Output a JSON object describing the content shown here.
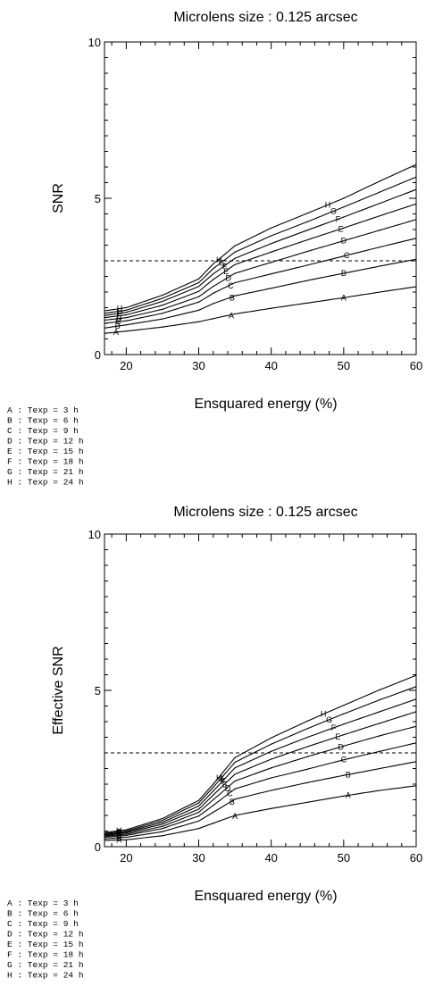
{
  "chart_data": [
    {
      "type": "line",
      "title": "Microlens size : 0.125 arcsec",
      "xlabel": "Ensquared energy (%)",
      "ylabel": "SNR",
      "xlim": [
        17,
        60
      ],
      "ylim": [
        0,
        10
      ],
      "xticks": [
        20,
        30,
        40,
        50,
        60
      ],
      "yticks": [
        0,
        5,
        10
      ],
      "threshold": 3,
      "legend": [
        "A : Texp = 3 h",
        "B : Texp = 6 h",
        "C : Texp = 9 h",
        "D : Texp = 12 h",
        "E : Texp = 15 h",
        "F : Texp = 18 h",
        "G : Texp = 21 h",
        "H : Texp = 24 h"
      ],
      "series": [
        {
          "name": "A",
          "x": [
            17,
            20,
            25,
            30,
            32,
            35,
            40,
            45,
            50,
            55,
            60
          ],
          "y": [
            0.68,
            0.75,
            0.88,
            1.05,
            1.15,
            1.3,
            1.48,
            1.65,
            1.82,
            2.0,
            2.17
          ]
        },
        {
          "name": "B",
          "x": [
            17,
            20,
            25,
            30,
            32,
            35,
            40,
            45,
            50,
            55,
            60
          ],
          "y": [
            0.85,
            0.95,
            1.14,
            1.42,
            1.63,
            1.88,
            2.12,
            2.37,
            2.6,
            2.83,
            3.05
          ]
        },
        {
          "name": "C",
          "x": [
            17,
            20,
            25,
            30,
            32,
            35,
            40,
            45,
            50,
            55,
            60
          ],
          "y": [
            1.0,
            1.08,
            1.32,
            1.68,
            1.96,
            2.3,
            2.58,
            2.86,
            3.15,
            3.44,
            3.72
          ]
        },
        {
          "name": "D",
          "x": [
            17,
            20,
            25,
            30,
            32,
            35,
            40,
            45,
            50,
            55,
            60
          ],
          "y": [
            1.1,
            1.18,
            1.45,
            1.85,
            2.18,
            2.6,
            2.95,
            3.3,
            3.64,
            3.98,
            4.32
          ]
        },
        {
          "name": "E",
          "x": [
            17,
            20,
            25,
            30,
            32,
            35,
            40,
            45,
            50,
            55,
            60
          ],
          "y": [
            1.18,
            1.27,
            1.58,
            2.02,
            2.4,
            2.88,
            3.28,
            3.67,
            4.05,
            4.44,
            4.82
          ]
        },
        {
          "name": "F",
          "x": [
            17,
            20,
            25,
            30,
            32,
            35,
            40,
            45,
            50,
            55,
            60
          ],
          "y": [
            1.25,
            1.35,
            1.7,
            2.18,
            2.58,
            3.08,
            3.55,
            3.98,
            4.4,
            4.84,
            5.28
          ]
        },
        {
          "name": "G",
          "x": [
            17,
            20,
            25,
            30,
            32,
            35,
            40,
            45,
            50,
            55,
            60
          ],
          "y": [
            1.32,
            1.42,
            1.8,
            2.3,
            2.75,
            3.28,
            3.8,
            4.25,
            4.72,
            5.2,
            5.68
          ]
        },
        {
          "name": "H",
          "x": [
            17,
            20,
            25,
            30,
            32,
            35,
            40,
            45,
            50,
            55,
            60
          ],
          "y": [
            1.4,
            1.5,
            1.9,
            2.42,
            2.9,
            3.48,
            4.05,
            4.52,
            5.0,
            5.55,
            6.08
          ]
        }
      ],
      "labels": [
        {
          "name": "A",
          "x": [
            18.6,
            34.5
          ]
        },
        {
          "name": "B",
          "x": [
            18.8,
            34.6
          ]
        },
        {
          "name": "C",
          "x": [
            18.9,
            34.4
          ]
        },
        {
          "name": "D",
          "x": [
            19.0,
            34.1
          ]
        },
        {
          "name": "E",
          "x": [
            19.0,
            33.8
          ]
        },
        {
          "name": "F",
          "x": [
            19.1,
            33.6
          ]
        },
        {
          "name": "G",
          "x": [
            19.1,
            33.2
          ]
        },
        {
          "name": "H",
          "x": [
            19.1,
            32.8
          ]
        }
      ],
      "labels_right": [
        {
          "name": "A",
          "x": 50.0
        },
        {
          "name": "B",
          "x": 50.0
        },
        {
          "name": "C",
          "x": 50.4
        },
        {
          "name": "D",
          "x": 50.0
        },
        {
          "name": "E",
          "x": 49.6
        },
        {
          "name": "F",
          "x": 49.2
        },
        {
          "name": "G",
          "x": 48.6
        },
        {
          "name": "H",
          "x": 47.8
        }
      ]
    },
    {
      "type": "line",
      "title": "Microlens size : 0.125 arcsec",
      "xlabel": "Ensquared energy (%)",
      "ylabel": "Effective SNR",
      "xlim": [
        17,
        60
      ],
      "ylim": [
        0,
        10
      ],
      "xticks": [
        20,
        30,
        40,
        50,
        60
      ],
      "yticks": [
        0,
        5,
        10
      ],
      "threshold": 3,
      "legend": [
        "A : Texp = 3 h",
        "B : Texp = 6 h",
        "C : Texp = 9 h",
        "D : Texp = 12 h",
        "E : Texp = 15 h",
        "F : Texp = 18 h",
        "G : Texp = 21 h",
        "H : Texp = 24 h"
      ],
      "series": [
        {
          "name": "A",
          "x": [
            17,
            20,
            25,
            30,
            32,
            35,
            40,
            45,
            50,
            55,
            60
          ],
          "y": [
            0.2,
            0.22,
            0.35,
            0.58,
            0.75,
            1.0,
            1.22,
            1.42,
            1.62,
            1.8,
            1.95
          ]
        },
        {
          "name": "B",
          "x": [
            17,
            20,
            25,
            30,
            32,
            35,
            40,
            45,
            50,
            55,
            60
          ],
          "y": [
            0.25,
            0.3,
            0.48,
            0.82,
            1.1,
            1.52,
            1.8,
            2.05,
            2.28,
            2.5,
            2.72
          ]
        },
        {
          "name": "C",
          "x": [
            17,
            20,
            25,
            30,
            32,
            35,
            40,
            45,
            50,
            55,
            60
          ],
          "y": [
            0.3,
            0.36,
            0.58,
            0.98,
            1.32,
            1.85,
            2.2,
            2.48,
            2.78,
            3.05,
            3.32
          ]
        },
        {
          "name": "D",
          "x": [
            17,
            20,
            25,
            30,
            32,
            35,
            40,
            45,
            50,
            55,
            60
          ],
          "y": [
            0.33,
            0.4,
            0.65,
            1.1,
            1.5,
            2.1,
            2.52,
            2.88,
            3.22,
            3.55,
            3.85
          ]
        },
        {
          "name": "E",
          "x": [
            17,
            20,
            25,
            30,
            32,
            35,
            40,
            45,
            50,
            55,
            60
          ],
          "y": [
            0.36,
            0.44,
            0.72,
            1.2,
            1.65,
            2.32,
            2.8,
            3.2,
            3.58,
            3.95,
            4.32
          ]
        },
        {
          "name": "F",
          "x": [
            17,
            20,
            25,
            30,
            32,
            35,
            40,
            45,
            50,
            55,
            60
          ],
          "y": [
            0.39,
            0.47,
            0.78,
            1.3,
            1.78,
            2.52,
            3.05,
            3.5,
            3.92,
            4.32,
            4.72
          ]
        },
        {
          "name": "G",
          "x": [
            17,
            20,
            25,
            30,
            32,
            35,
            40,
            45,
            50,
            55,
            60
          ],
          "y": [
            0.42,
            0.5,
            0.84,
            1.4,
            1.9,
            2.7,
            3.28,
            3.78,
            4.25,
            4.7,
            5.12
          ]
        },
        {
          "name": "H",
          "x": [
            17,
            20,
            25,
            30,
            32,
            35,
            40,
            45,
            50,
            55,
            60
          ],
          "y": [
            0.45,
            0.54,
            0.9,
            1.48,
            2.0,
            2.85,
            3.48,
            4.02,
            4.52,
            5.02,
            5.48
          ]
        }
      ],
      "labels": [
        {
          "name": "A",
          "x": [
            19.0,
            35.0
          ]
        },
        {
          "name": "B",
          "x": [
            19.0,
            34.6
          ]
        },
        {
          "name": "C",
          "x": [
            19.0,
            34.3
          ]
        },
        {
          "name": "D",
          "x": [
            19.0,
            34.0
          ]
        },
        {
          "name": "E",
          "x": [
            19.0,
            33.6
          ]
        },
        {
          "name": "F",
          "x": [
            19.0,
            33.4
          ]
        },
        {
          "name": "G",
          "x": [
            19.0,
            33.1
          ]
        },
        {
          "name": "H",
          "x": [
            19.0,
            32.8
          ]
        }
      ],
      "labels_right": [
        {
          "name": "A",
          "x": 50.6
        },
        {
          "name": "B",
          "x": 50.6
        },
        {
          "name": "C",
          "x": 50.0
        },
        {
          "name": "D",
          "x": 49.6
        },
        {
          "name": "E",
          "x": 49.2
        },
        {
          "name": "F",
          "x": 48.6
        },
        {
          "name": "G",
          "x": 48.0
        },
        {
          "name": "H",
          "x": 47.2
        }
      ]
    }
  ]
}
